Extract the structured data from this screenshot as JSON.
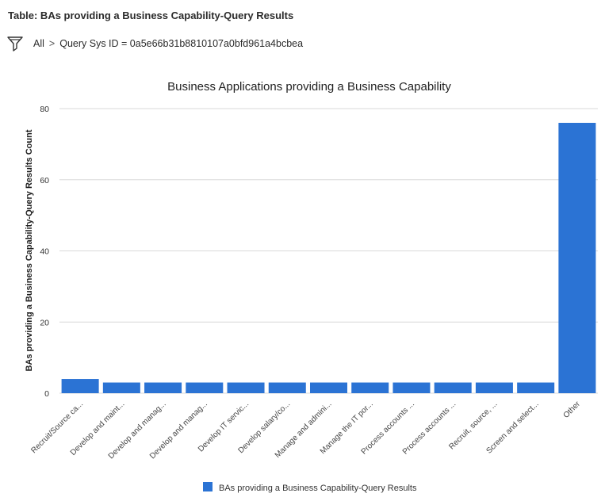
{
  "header": {
    "table_title": "Table: BAs providing a Business Capability-Query Results",
    "breadcrumb_all": "All",
    "breadcrumb_sep": ">",
    "breadcrumb_query": "Query Sys ID = 0a5e66b31b8810107a0bfd961a4bcbea"
  },
  "icons": {
    "filter": "filter-funnel-icon"
  },
  "colors": {
    "bar": "#2b73d4",
    "grid": "#d8d8d8"
  },
  "chart_data": {
    "type": "bar",
    "title": "Business Applications providing a Business Capability",
    "xlabel": "",
    "ylabel": "BAs providing a Business Capability-Query Results Count",
    "ylim": [
      0,
      80
    ],
    "yticks": [
      0,
      20,
      40,
      60,
      80
    ],
    "grid": true,
    "legend_position": "bottom",
    "categories": [
      "Recruit/Source ca...",
      "Develop and maint...",
      "Develop and manag...",
      "Develop and manag...",
      "Develop IT servic...",
      "Develop salary/co...",
      "Manage and admini...",
      "Manage the IT por...",
      "Process accounts ...",
      "Process accounts ...",
      "Recruit, source, ...",
      "Screen and select...",
      "Other"
    ],
    "series": [
      {
        "name": "BAs providing a Business Capability-Query Results",
        "values": [
          4,
          3,
          3,
          3,
          3,
          3,
          3,
          3,
          3,
          3,
          3,
          3,
          76
        ]
      }
    ]
  }
}
